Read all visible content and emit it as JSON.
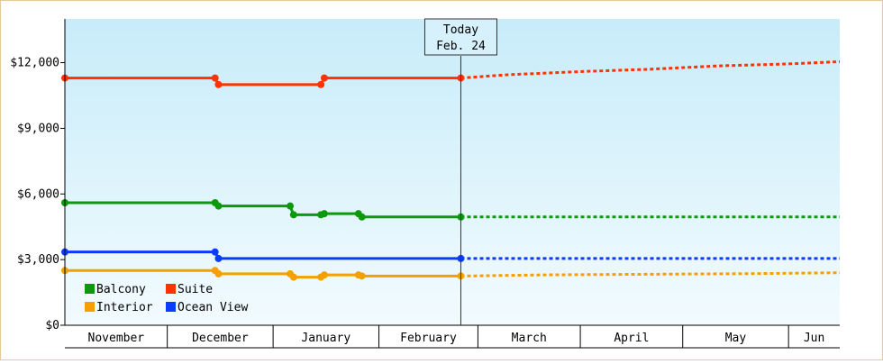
{
  "chart_data": {
    "type": "line",
    "title": "",
    "xlabel": "",
    "ylabel": "",
    "ylim": [
      0,
      14000
    ],
    "xlim": [
      "2024-10-31",
      "2025-06-15"
    ],
    "y_ticks": [
      {
        "value": 0,
        "label": "$0"
      },
      {
        "value": 3000,
        "label": "$3,000"
      },
      {
        "value": 6000,
        "label": "$6,000"
      },
      {
        "value": 9000,
        "label": "$9,000"
      },
      {
        "value": 12000,
        "label": "$12,000"
      }
    ],
    "months": [
      {
        "label": "November",
        "start": "2024-10-31",
        "end": "2024-11-30"
      },
      {
        "label": "December",
        "start": "2024-11-30",
        "end": "2024-12-31"
      },
      {
        "label": "January",
        "start": "2024-12-31",
        "end": "2025-01-31"
      },
      {
        "label": "February",
        "start": "2025-01-31",
        "end": "2025-03-01"
      },
      {
        "label": "March",
        "start": "2025-03-01",
        "end": "2025-03-31"
      },
      {
        "label": "April",
        "start": "2025-03-31",
        "end": "2025-04-30"
      },
      {
        "label": "May",
        "start": "2025-04-30",
        "end": "2025-05-31"
      },
      {
        "label": "Jun",
        "start": "2025-05-31",
        "end": "2025-06-15"
      }
    ],
    "today": {
      "date": "2025-02-24",
      "label_line1": "Today",
      "label_line2": "Feb. 24"
    },
    "grid": false,
    "background_gradient": [
      "#c8ecfa",
      "#f2fbfe"
    ],
    "legend_placement": "bottom-left",
    "series": [
      {
        "name": "Suite",
        "color": "#ff3300",
        "points": [
          [
            "2024-10-31",
            11300
          ],
          [
            "2024-12-14",
            11300
          ],
          [
            "2024-12-15",
            11000
          ],
          [
            "2025-01-14",
            11000
          ],
          [
            "2025-01-15",
            11300
          ],
          [
            "2025-02-24",
            11300
          ]
        ],
        "markers": [
          [
            "2024-10-31",
            11300
          ],
          [
            "2024-12-14",
            11300
          ],
          [
            "2024-12-15",
            11000
          ],
          [
            "2025-01-14",
            11000
          ],
          [
            "2025-01-15",
            11300
          ],
          [
            "2025-02-24",
            11300
          ]
        ],
        "forecast": [
          [
            "2025-02-24",
            11300
          ],
          [
            "2025-03-10",
            11450
          ],
          [
            "2025-04-01",
            11600
          ],
          [
            "2025-04-20",
            11700
          ],
          [
            "2025-05-10",
            11850
          ],
          [
            "2025-06-01",
            11950
          ],
          [
            "2025-06-15",
            12050
          ]
        ]
      },
      {
        "name": "Balcony",
        "color": "#0c9a0c",
        "points": [
          [
            "2024-10-31",
            5600
          ],
          [
            "2024-12-14",
            5600
          ],
          [
            "2024-12-15",
            5450
          ],
          [
            "2025-01-05",
            5450
          ],
          [
            "2025-01-06",
            5050
          ],
          [
            "2025-01-14",
            5050
          ],
          [
            "2025-01-15",
            5100
          ],
          [
            "2025-01-25",
            5100
          ],
          [
            "2025-01-26",
            4950
          ],
          [
            "2025-02-24",
            4950
          ]
        ],
        "markers": [
          [
            "2024-10-31",
            5600
          ],
          [
            "2024-12-14",
            5600
          ],
          [
            "2024-12-15",
            5450
          ],
          [
            "2025-01-05",
            5450
          ],
          [
            "2025-01-06",
            5050
          ],
          [
            "2025-01-14",
            5050
          ],
          [
            "2025-01-15",
            5100
          ],
          [
            "2025-01-25",
            5100
          ],
          [
            "2025-01-26",
            4950
          ],
          [
            "2025-02-24",
            4950
          ]
        ],
        "forecast": [
          [
            "2025-02-24",
            4950
          ],
          [
            "2025-06-15",
            4950
          ]
        ]
      },
      {
        "name": "Ocean View",
        "color": "#0a3cff",
        "points": [
          [
            "2024-10-31",
            3350
          ],
          [
            "2024-12-14",
            3350
          ],
          [
            "2024-12-15",
            3050
          ],
          [
            "2025-02-24",
            3050
          ]
        ],
        "markers": [
          [
            "2024-10-31",
            3350
          ],
          [
            "2024-12-14",
            3350
          ],
          [
            "2024-12-15",
            3050
          ],
          [
            "2025-02-24",
            3050
          ]
        ],
        "forecast": [
          [
            "2025-02-24",
            3050
          ],
          [
            "2025-06-15",
            3050
          ]
        ]
      },
      {
        "name": "Interior",
        "color": "#f5a000",
        "points": [
          [
            "2024-10-31",
            2500
          ],
          [
            "2024-12-14",
            2500
          ],
          [
            "2024-12-15",
            2350
          ],
          [
            "2025-01-05",
            2350
          ],
          [
            "2025-01-06",
            2200
          ],
          [
            "2025-01-14",
            2200
          ],
          [
            "2025-01-15",
            2300
          ],
          [
            "2025-01-25",
            2300
          ],
          [
            "2025-01-26",
            2250
          ],
          [
            "2025-02-24",
            2250
          ]
        ],
        "markers": [
          [
            "2024-10-31",
            2500
          ],
          [
            "2024-12-14",
            2500
          ],
          [
            "2024-12-15",
            2350
          ],
          [
            "2025-01-05",
            2350
          ],
          [
            "2025-01-06",
            2200
          ],
          [
            "2025-01-14",
            2200
          ],
          [
            "2025-01-15",
            2300
          ],
          [
            "2025-01-25",
            2300
          ],
          [
            "2025-01-26",
            2250
          ],
          [
            "2025-02-24",
            2250
          ]
        ],
        "forecast": [
          [
            "2025-02-24",
            2250
          ],
          [
            "2025-03-20",
            2300
          ],
          [
            "2025-04-20",
            2330
          ],
          [
            "2025-05-20",
            2360
          ],
          [
            "2025-06-15",
            2400
          ]
        ]
      }
    ],
    "legend": [
      {
        "name": "Balcony",
        "color": "#0c9a0c"
      },
      {
        "name": "Suite",
        "color": "#ff3300"
      },
      {
        "name": "Interior",
        "color": "#f5a000"
      },
      {
        "name": "Ocean View",
        "color": "#0a3cff"
      }
    ]
  }
}
